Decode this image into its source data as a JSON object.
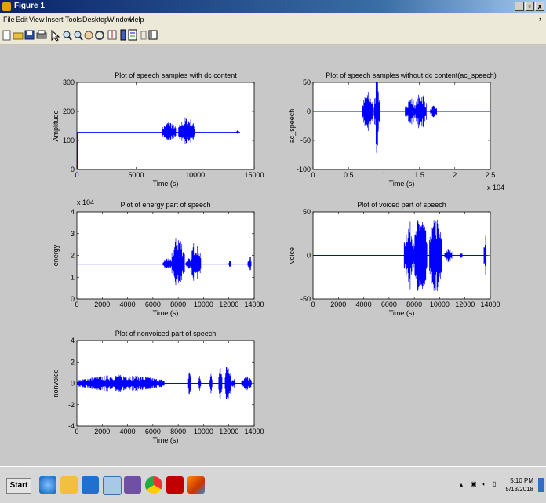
{
  "window": {
    "title": "Figure 1"
  },
  "menu": {
    "items": [
      "File",
      "Edit",
      "View",
      "Insert",
      "Tools",
      "Desktop",
      "Window",
      "Help"
    ]
  },
  "toolbar_icons": [
    "new-icon",
    "open-icon",
    "save-icon",
    "print-icon",
    "pointer-icon",
    "zoom-in-icon",
    "zoom-out-icon",
    "pan-icon",
    "rotate-icon",
    "data-cursor-icon",
    "colorbar-icon",
    "legend-icon",
    "hide-plot-tools-icon",
    "show-plot-tools-icon"
  ],
  "chart_data": [
    {
      "type": "line",
      "title": "Plot of speech samples with dc content",
      "xlabel": "Time (s)",
      "ylabel": "Amplitude",
      "xlim": [
        0,
        15000
      ],
      "ylim": [
        0,
        300
      ],
      "xticks": [
        "0",
        "5000",
        "10000",
        "15000"
      ],
      "yticks": [
        "0",
        "100",
        "200",
        "300"
      ],
      "baseline": 128,
      "signal_extent": [
        0,
        13800
      ],
      "bursts": [
        [
          7200,
          8400,
          40
        ],
        [
          8600,
          10000,
          55
        ],
        [
          13500,
          13700,
          10
        ]
      ]
    },
    {
      "type": "line",
      "title": "Plot of speech samples without dc content(ac_speech)",
      "xlabel": "Time (s)",
      "ylabel": "ac_speech",
      "xlim": [
        0,
        2.5
      ],
      "ylim": [
        -100,
        50
      ],
      "xticks": [
        "0",
        "0.5",
        "1",
        "1.5",
        "2",
        "2.5"
      ],
      "yticks": [
        "-100",
        "-50",
        "0",
        "50"
      ],
      "x_multiplier": "x 10^4",
      "baseline": 0,
      "signal_extent": [
        0,
        2.5
      ],
      "bursts": [
        [
          0.7,
          0.85,
          35
        ],
        [
          0.86,
          0.95,
          45
        ],
        [
          0.88,
          0.92,
          80
        ],
        [
          1.3,
          1.45,
          25
        ],
        [
          1.45,
          1.6,
          35
        ],
        [
          1.65,
          1.75,
          10
        ]
      ]
    },
    {
      "type": "line",
      "title": "Plot of energy part of speech",
      "xlabel": "Time (s)",
      "ylabel": "energy",
      "xlim": [
        0,
        14000
      ],
      "ylim": [
        0,
        4
      ],
      "xticks": [
        "0",
        "2000",
        "4000",
        "6000",
        "8000",
        "10000",
        "12000",
        "14000"
      ],
      "yticks": [
        "0",
        "1",
        "2",
        "3",
        "4"
      ],
      "y_multiplier": "x 10^4",
      "baseline": 1.6,
      "signal_extent": [
        0,
        13800
      ],
      "bursts": [
        [
          6800,
          7500,
          0.3
        ],
        [
          7500,
          8500,
          1.4
        ],
        [
          8600,
          9000,
          0.3
        ],
        [
          9000,
          9800,
          1.2
        ],
        [
          12000,
          12200,
          0.2
        ],
        [
          13500,
          13800,
          0.4
        ]
      ]
    },
    {
      "type": "line",
      "title": "Plot of voiced part of speech",
      "xlabel": "Time (s)",
      "ylabel": "voice",
      "xlim": [
        0,
        14000
      ],
      "ylim": [
        -50,
        50
      ],
      "xticks": [
        "0",
        "2000",
        "4000",
        "6000",
        "8000",
        "10000",
        "12000",
        "14000"
      ],
      "yticks": [
        "-50",
        "0",
        "50"
      ],
      "baseline": 0,
      "signal_extent": [
        0,
        13800
      ],
      "bursts": [
        [
          7200,
          8000,
          40
        ],
        [
          8000,
          9000,
          50
        ],
        [
          9200,
          10200,
          45
        ],
        [
          10400,
          11000,
          8
        ],
        [
          11600,
          11800,
          5
        ],
        [
          13500,
          13700,
          25
        ]
      ]
    },
    {
      "type": "line",
      "title": "Plot of nonvoiced part of speech",
      "xlabel": "Time (s)",
      "ylabel": "nonvoice",
      "xlim": [
        0,
        14000
      ],
      "ylim": [
        -4,
        4
      ],
      "xticks": [
        "0",
        "2000",
        "4000",
        "6000",
        "8000",
        "10000",
        "12000",
        "14000"
      ],
      "yticks": [
        "-4",
        "-2",
        "0",
        "2",
        "4"
      ],
      "baseline": 0,
      "signal_extent": [
        0,
        13800
      ],
      "bursts": [
        [
          0,
          6900,
          0.8
        ],
        [
          8800,
          9000,
          1.5
        ],
        [
          9600,
          9800,
          0.8
        ],
        [
          10500,
          10700,
          1.0
        ],
        [
          11200,
          11500,
          2.0
        ],
        [
          11700,
          12200,
          2.3
        ],
        [
          12200,
          12500,
          0.5
        ],
        [
          13000,
          13800,
          0.7
        ]
      ]
    }
  ],
  "taskbar": {
    "start_label": "Start",
    "apps": [
      "internet-explorer-icon",
      "file-explorer-icon",
      "outlook-icon",
      "notepad-icon",
      "visual-studio-icon",
      "chrome-icon",
      "acrobat-icon",
      "matlab-icon"
    ],
    "clock_time": "5:10 PM",
    "clock_date": "5/13/2018"
  }
}
